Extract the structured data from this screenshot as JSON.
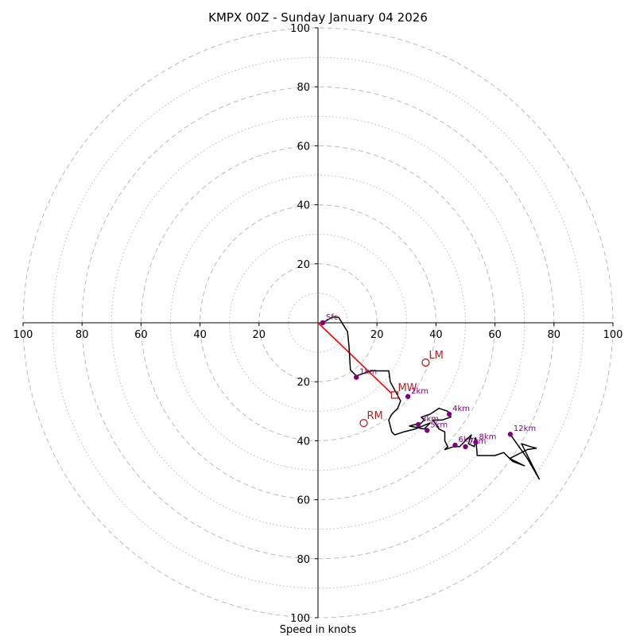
{
  "chart_data": {
    "type": "hodograph",
    "title": "KMPX 00Z - Sunday January 04 2026",
    "xlabel": "Speed in knots",
    "units": "knots",
    "range": [
      -100,
      100
    ],
    "ring_major": [
      20,
      40,
      60,
      80,
      100
    ],
    "ring_minor": [
      10,
      30,
      50,
      70,
      90
    ],
    "x_ticks": [
      {
        "value": -100,
        "label": "100"
      },
      {
        "value": -80,
        "label": "80"
      },
      {
        "value": -60,
        "label": "60"
      },
      {
        "value": -40,
        "label": "40"
      },
      {
        "value": -20,
        "label": "20"
      },
      {
        "value": 20,
        "label": "20"
      },
      {
        "value": 40,
        "label": "40"
      },
      {
        "value": 60,
        "label": "60"
      },
      {
        "value": 80,
        "label": "80"
      },
      {
        "value": 100,
        "label": "100"
      }
    ],
    "y_ticks": [
      {
        "value": 100,
        "label": "100"
      },
      {
        "value": 80,
        "label": "80"
      },
      {
        "value": 60,
        "label": "60"
      },
      {
        "value": 40,
        "label": "40"
      },
      {
        "value": 20,
        "label": "20"
      },
      {
        "value": -20,
        "label": "20"
      },
      {
        "value": -40,
        "label": "40"
      },
      {
        "value": -60,
        "label": "60"
      },
      {
        "value": -80,
        "label": "80"
      },
      {
        "value": -100,
        "label": "100"
      }
    ],
    "wind_trace": [
      [
        1.6,
        0.0
      ],
      [
        5,
        2
      ],
      [
        7,
        1.8
      ],
      [
        10,
        -3
      ],
      [
        10.5,
        -8
      ],
      [
        11,
        -16
      ],
      [
        13,
        -18
      ],
      [
        18,
        -16.3
      ],
      [
        24,
        -16.3
      ],
      [
        24.5,
        -20
      ],
      [
        28,
        -26.5
      ],
      [
        27,
        -29
      ],
      [
        25,
        -31
      ],
      [
        24,
        -33
      ],
      [
        25,
        -37
      ],
      [
        26,
        -38
      ],
      [
        29,
        -37
      ],
      [
        33,
        -36
      ],
      [
        38,
        -34
      ],
      [
        36,
        -36
      ],
      [
        31,
        -35
      ],
      [
        35,
        -34
      ],
      [
        36,
        -33
      ],
      [
        35,
        -32
      ],
      [
        38,
        -31
      ],
      [
        41,
        -29
      ],
      [
        44,
        -30
      ],
      [
        45,
        -32
      ],
      [
        42,
        -33
      ],
      [
        39,
        -33
      ],
      [
        41,
        -36
      ],
      [
        43,
        -37
      ],
      [
        43,
        -40
      ],
      [
        44,
        -42
      ],
      [
        43,
        -43
      ],
      [
        46,
        -42
      ],
      [
        48,
        -42
      ],
      [
        50,
        -40
      ],
      [
        52,
        -38
      ],
      [
        51,
        -41
      ],
      [
        53,
        -42
      ],
      [
        53.5,
        -39
      ],
      [
        54,
        -45
      ],
      [
        58,
        -45
      ],
      [
        60,
        -45
      ],
      [
        63,
        -44
      ],
      [
        65,
        -46
      ],
      [
        66,
        -47
      ],
      [
        70,
        -48.5
      ],
      [
        65,
        -46
      ],
      [
        71,
        -43
      ],
      [
        74,
        -42.5
      ],
      [
        72,
        -42
      ],
      [
        69,
        -41
      ],
      [
        75,
        -53
      ],
      [
        71,
        -46
      ],
      [
        66,
        -39
      ],
      [
        65.2,
        -37.8
      ]
    ],
    "height_markers": [
      {
        "label": "Sfc",
        "u": 1.6,
        "v": 0.0
      },
      {
        "label": "1km",
        "u": 13,
        "v": -18.5
      },
      {
        "label": "2km",
        "u": 30.5,
        "v": -25
      },
      {
        "label": "3km",
        "u": 34,
        "v": -34.5
      },
      {
        "label": "4km",
        "u": 44.5,
        "v": -31
      },
      {
        "label": "5km",
        "u": 37,
        "v": -36.5
      },
      {
        "label": "6km",
        "u": 46.5,
        "v": -41.5
      },
      {
        "label": "7km",
        "u": 50,
        "v": -42
      },
      {
        "label": "8km",
        "u": 53.5,
        "v": -40.5
      },
      {
        "label": "12km",
        "u": 65.2,
        "v": -37.8
      }
    ],
    "storm_motion": [
      {
        "label": "LM",
        "u": 36.5,
        "v": -13.5
      },
      {
        "label": "RM",
        "u": 15.5,
        "v": -34
      },
      {
        "label": "MW",
        "u": 26,
        "v": -24.5
      }
    ],
    "shear_vector": {
      "from_u": 0,
      "from_v": 0,
      "to_u": 25,
      "to_v": -24
    },
    "colors": {
      "trace": "#000000",
      "markers": "#800080",
      "storm_motion": "#b22222",
      "shear": "#ff0000",
      "rings": "#bbbbbb",
      "axes": "#000000"
    }
  }
}
